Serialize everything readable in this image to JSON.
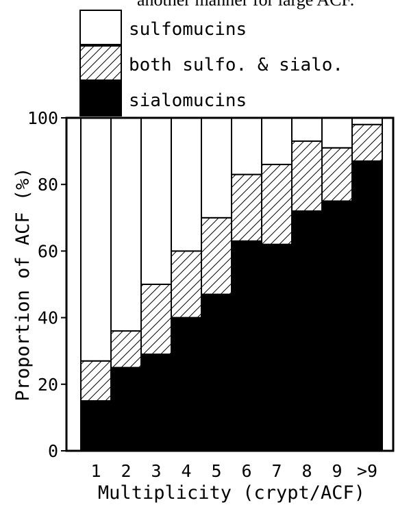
{
  "top_caption": "another manner for large ACF.",
  "chart_data": {
    "type": "bar",
    "stacked": true,
    "categories": [
      "1",
      "2",
      "3",
      "4",
      "5",
      "6",
      "7",
      "8",
      "9",
      ">9"
    ],
    "series": [
      {
        "name": "sialomucins",
        "fill": "solid-black",
        "values": [
          15,
          25,
          29,
          40,
          47,
          63,
          62,
          72,
          75,
          87
        ]
      },
      {
        "name": "both sulfo. & sialo.",
        "fill": "hatched",
        "values": [
          12,
          11,
          21,
          20,
          23,
          20,
          24,
          21,
          16,
          11
        ]
      },
      {
        "name": "sulfomucins",
        "fill": "white",
        "values": [
          73,
          64,
          50,
          40,
          30,
          17,
          14,
          7,
          9,
          2
        ]
      }
    ],
    "xlabel": "Multiplicity (crypt/ACF)",
    "ylabel": "Proportion of ACF (%)",
    "ylim": [
      0,
      100
    ],
    "yticks": [
      0,
      20,
      40,
      60,
      80,
      100
    ],
    "grid": false,
    "legend_position": "top"
  }
}
